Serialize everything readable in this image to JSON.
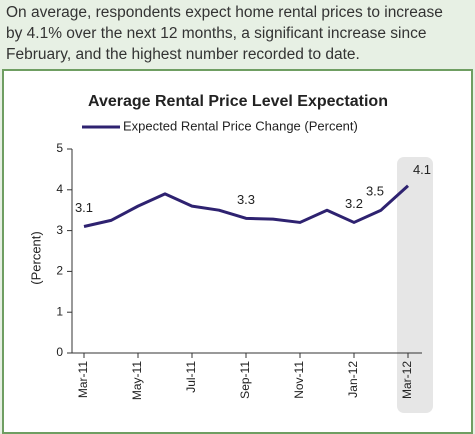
{
  "header": {
    "lines": [
      "On average, respondents expect home rental prices to increase",
      "by 4.1% over the next 12 months, a significant increase since",
      "February, and the highest number recorded to date."
    ]
  },
  "chart_data": {
    "type": "line",
    "title": "Average Rental Price Level Expectation",
    "y_label": "(Percent)",
    "categories": [
      "Mar-11",
      null,
      "May-11",
      null,
      "Jul-11",
      null,
      "Sep-11",
      null,
      "Nov-11",
      null,
      "Jan-12",
      null,
      "Mar-12"
    ],
    "series": [
      {
        "name": "Expected Rental Price Change (Percent)",
        "color": "#2e2270",
        "values": [
          3.1,
          3.25,
          3.6,
          3.9,
          3.6,
          3.5,
          3.3,
          3.28,
          3.2,
          3.5,
          3.2,
          3.5,
          4.1
        ]
      }
    ],
    "ylim": [
      0,
      5
    ],
    "yticks": [
      0,
      1,
      2,
      3,
      4,
      5
    ],
    "grid": false,
    "legend": "top"
  }
}
